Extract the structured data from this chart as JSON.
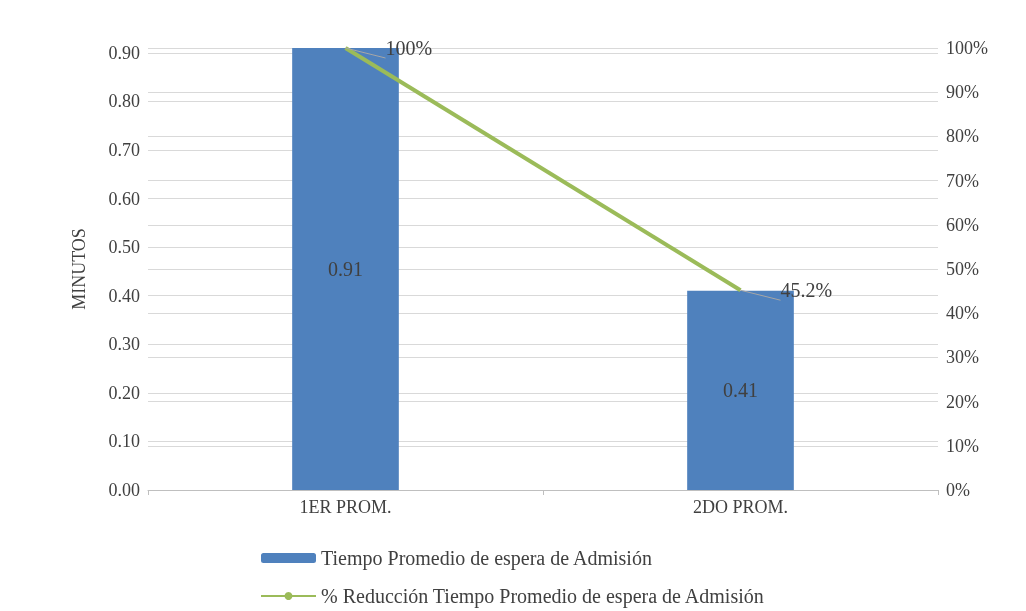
{
  "chart_data": {
    "type": "bar",
    "ylabel": "MINUTOS",
    "categories": [
      "1ER PROM.",
      "2DO PROM."
    ],
    "series": [
      {
        "name": "Tiempo Promedio de espera de Admisión",
        "color": "#4f81bd",
        "values": [
          0.91,
          0.41
        ],
        "value_labels": [
          "0.91",
          "0.41"
        ]
      },
      {
        "name": "% Reducción Tiempo Promedio de espera de Admisión",
        "type": "line",
        "axis": "y2",
        "color": "#9bbb59",
        "values": [
          100,
          45.2
        ],
        "value_labels": [
          "100%",
          "45.2%"
        ]
      }
    ],
    "ylim": [
      0,
      0.91
    ],
    "yticks": [
      {
        "value": 0,
        "label": "0.00"
      },
      {
        "value": 0.1,
        "label": "0.10"
      },
      {
        "value": 0.2,
        "label": "0.20"
      },
      {
        "value": 0.3,
        "label": "0.30"
      },
      {
        "value": 0.4,
        "label": "0.40"
      },
      {
        "value": 0.5,
        "label": "0.50"
      },
      {
        "value": 0.6,
        "label": "0.60"
      },
      {
        "value": 0.7,
        "label": "0.70"
      },
      {
        "value": 0.8,
        "label": "0.80"
      },
      {
        "value": 0.9,
        "label": "0.90"
      }
    ],
    "y2lim": [
      0,
      100
    ],
    "y2ticks": [
      {
        "value": 0,
        "label": "0%"
      },
      {
        "value": 10,
        "label": "10%"
      },
      {
        "value": 20,
        "label": "20%"
      },
      {
        "value": 30,
        "label": "30%"
      },
      {
        "value": 40,
        "label": "40%"
      },
      {
        "value": 50,
        "label": "50%"
      },
      {
        "value": 60,
        "label": "60%"
      },
      {
        "value": 70,
        "label": "70%"
      },
      {
        "value": 80,
        "label": "80%"
      },
      {
        "value": 90,
        "label": "90%"
      },
      {
        "value": 100,
        "label": "100%"
      }
    ],
    "grid": "y",
    "legend": "bottom",
    "marker": "none",
    "line_style": "solid"
  }
}
